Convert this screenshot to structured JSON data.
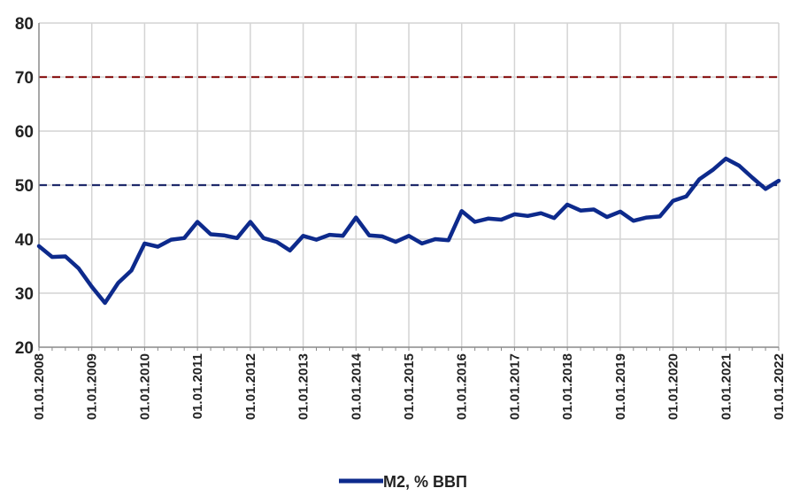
{
  "chart_data": {
    "type": "line",
    "title": "",
    "xlabel": "",
    "ylabel": "",
    "ylim": [
      20,
      80
    ],
    "y_ticks": [
      "20",
      "30",
      "40",
      "50",
      "60",
      "70",
      "80"
    ],
    "x_tick_labels": [
      "01.01.2008",
      "01.01.2009",
      "01.01.2010",
      "01.01.2011",
      "01.01.2012",
      "01.01.2013",
      "01.01.2014",
      "01.01.2015",
      "01.01.2016",
      "01.01.2017",
      "01.01.2018",
      "01.01.2019",
      "01.01.2020",
      "01.01.2021",
      "01.01.2022"
    ],
    "grid": true,
    "legend_position": "bottom",
    "reference_lines": [
      {
        "value": 70,
        "color": "#8b1a1a",
        "style": "dashed"
      },
      {
        "value": 50,
        "color": "#1f2a6b",
        "style": "dashed"
      }
    ],
    "series": [
      {
        "name": "М2, % ВВП",
        "color": "#0d2a8c",
        "x": [
          2008.0,
          2008.25,
          2008.5,
          2008.75,
          2009.0,
          2009.25,
          2009.5,
          2009.75,
          2010.0,
          2010.25,
          2010.5,
          2010.75,
          2011.0,
          2011.25,
          2011.5,
          2011.75,
          2012.0,
          2012.25,
          2012.5,
          2012.75,
          2013.0,
          2013.25,
          2013.5,
          2013.75,
          2014.0,
          2014.25,
          2014.5,
          2014.75,
          2015.0,
          2015.25,
          2015.5,
          2015.75,
          2016.0,
          2016.25,
          2016.5,
          2016.75,
          2017.0,
          2017.25,
          2017.5,
          2017.75,
          2018.0,
          2018.25,
          2018.5,
          2018.75,
          2019.0,
          2019.25,
          2019.5,
          2019.75,
          2020.0,
          2020.25,
          2020.5,
          2020.75,
          2021.0,
          2021.25,
          2021.5,
          2021.75,
          2022.0
        ],
        "y": [
          38.7,
          36.7,
          36.8,
          34.6,
          31.2,
          28.2,
          31.9,
          34.2,
          39.2,
          38.6,
          39.9,
          40.2,
          43.2,
          40.9,
          40.7,
          40.2,
          43.2,
          40.2,
          39.5,
          37.9,
          40.6,
          39.9,
          40.8,
          40.6,
          44.0,
          40.7,
          40.5,
          39.5,
          40.6,
          39.2,
          40.0,
          39.8,
          45.2,
          43.2,
          43.8,
          43.6,
          44.6,
          44.3,
          44.8,
          43.9,
          46.4,
          45.3,
          45.5,
          44.1,
          45.1,
          43.4,
          44.0,
          44.2,
          47.1,
          47.9,
          51.1,
          52.8,
          54.9,
          53.6,
          51.4,
          49.3,
          50.8
        ]
      }
    ]
  }
}
